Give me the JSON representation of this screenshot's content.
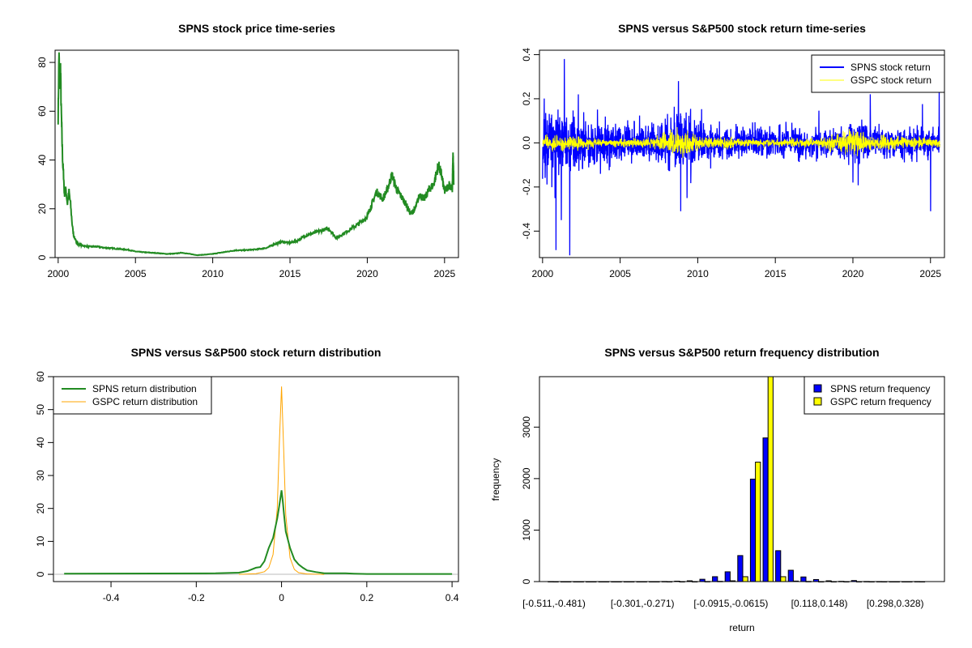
{
  "chart_data": [
    {
      "type": "line",
      "title": "SPNS stock price time-series",
      "xlabel": "",
      "ylabel": "",
      "xlim": [
        1999.8,
        2025.9
      ],
      "ylim": [
        0,
        85
      ],
      "xticks": [
        2000,
        2005,
        2010,
        2015,
        2020,
        2025
      ],
      "yticks": [
        0,
        20,
        40,
        60,
        80
      ],
      "color": "#228B22",
      "series": [
        {
          "name": "SPNS price",
          "x": [
            2000.0,
            2000.05,
            2000.1,
            2000.15,
            2000.2,
            2000.25,
            2000.3,
            2000.35,
            2000.4,
            2000.5,
            2000.6,
            2000.7,
            2000.8,
            2000.9,
            2001.0,
            2001.2,
            2001.5,
            2002,
            2002.5,
            2003,
            2003.5,
            2004,
            2004.5,
            2005,
            2005.5,
            2006,
            2006.5,
            2007,
            2007.5,
            2008,
            2008.5,
            2009,
            2009.5,
            2010,
            2010.5,
            2011,
            2011.5,
            2012,
            2012.5,
            2013,
            2013.5,
            2014,
            2014.5,
            2015,
            2015.5,
            2016,
            2016.5,
            2017,
            2017.5,
            2018,
            2018.5,
            2019,
            2019.5,
            2020,
            2020.3,
            2020.6,
            2021,
            2021.3,
            2021.6,
            2021.9,
            2022.2,
            2022.5,
            2022.8,
            2023.1,
            2023.4,
            2023.7,
            2024,
            2024.3,
            2024.6,
            2024.8,
            2025,
            2025.3,
            2025.5,
            2025.55,
            2025.6
          ],
          "y": [
            58,
            84,
            70,
            78,
            60,
            48,
            38,
            34,
            26,
            28,
            22,
            27,
            22,
            14,
            9,
            6,
            5,
            4.5,
            4.5,
            4,
            3.8,
            3.5,
            3.2,
            2.5,
            2.2,
            2,
            1.8,
            1.5,
            1.6,
            2,
            1.5,
            1,
            1.2,
            1.5,
            2,
            2.5,
            3,
            3,
            3.2,
            3.5,
            4,
            5.5,
            6.5,
            6,
            7,
            9,
            10,
            11,
            12,
            8,
            10,
            12,
            14,
            17,
            22,
            27,
            24,
            28,
            34,
            28,
            25,
            22,
            18,
            20,
            26,
            24,
            28,
            30,
            38,
            34,
            27,
            30,
            28,
            42,
            30
          ]
        }
      ]
    },
    {
      "type": "line",
      "title": "SPNS versus S&P500 stock return time-series",
      "xlim": [
        1999.8,
        2025.9
      ],
      "ylim": [
        -0.52,
        0.42
      ],
      "xticks": [
        2000,
        2005,
        2010,
        2015,
        2020,
        2025
      ],
      "yticks": [
        -0.4,
        -0.2,
        0.0,
        0.2,
        0.4
      ],
      "legend": {
        "position": "top-right",
        "entries": [
          "SPNS stock return",
          "GSPC stock return"
        ]
      },
      "series": [
        {
          "name": "SPNS stock return",
          "color": "#0000FF",
          "volatility_by_year": [
            [
              2000,
              0.08
            ],
            [
              2001,
              0.08
            ],
            [
              2002,
              0.06
            ],
            [
              2003,
              0.05
            ],
            [
              2005,
              0.045
            ],
            [
              2007,
              0.04
            ],
            [
              2008.7,
              0.07
            ],
            [
              2009.5,
              0.06
            ],
            [
              2011,
              0.04
            ],
            [
              2013,
              0.035
            ],
            [
              2016,
              0.035
            ],
            [
              2019,
              0.03
            ],
            [
              2020.2,
              0.045
            ],
            [
              2022,
              0.035
            ],
            [
              2025.6,
              0.03
            ]
          ],
          "spikes": [
            [
              2001.4,
              0.38
            ],
            [
              2001.75,
              -0.51
            ],
            [
              2001.2,
              -0.35
            ],
            [
              2000.8,
              -0.25
            ],
            [
              2002.3,
              0.22
            ],
            [
              2008.75,
              0.28
            ],
            [
              2008.9,
              -0.31
            ],
            [
              2009.3,
              -0.25
            ],
            [
              2020.0,
              -0.18
            ],
            [
              2025.0,
              -0.31
            ],
            [
              2025.55,
              0.24
            ]
          ]
        },
        {
          "name": "GSPC stock return",
          "color": "#FFFF00",
          "volatility_by_year": [
            [
              2000,
              0.015
            ],
            [
              2002,
              0.016
            ],
            [
              2004,
              0.008
            ],
            [
              2007,
              0.01
            ],
            [
              2008.8,
              0.035
            ],
            [
              2009.5,
              0.02
            ],
            [
              2011,
              0.013
            ],
            [
              2014,
              0.008
            ],
            [
              2018,
              0.01
            ],
            [
              2020.2,
              0.03
            ],
            [
              2021,
              0.012
            ],
            [
              2022,
              0.016
            ],
            [
              2025.6,
              0.01
            ]
          ]
        }
      ]
    },
    {
      "type": "line",
      "title": "SPNS versus S&P500 stock return distribution",
      "xlim": [
        -0.535,
        0.415
      ],
      "ylim": [
        -2.2,
        60
      ],
      "xticks": [
        -0.4,
        -0.2,
        0.0,
        0.2,
        0.4
      ],
      "yticks": [
        0,
        10,
        20,
        30,
        40,
        50,
        60
      ],
      "legend": {
        "position": "top-left",
        "entries": [
          "SPNS return distribution",
          "GSPC return distribution"
        ]
      },
      "series": [
        {
          "name": "SPNS return distribution",
          "color": "#228B22",
          "x": [
            -0.51,
            -0.155,
            -0.1,
            -0.08,
            -0.06,
            -0.05,
            -0.04,
            -0.03,
            -0.02,
            -0.01,
            -0.005,
            0,
            0.003,
            0.006,
            0.01,
            0.02,
            0.03,
            0.04,
            0.05,
            0.06,
            0.08,
            0.1,
            0.15,
            0.17,
            0.2,
            0.4
          ],
          "y": [
            0.2,
            0.3,
            0.5,
            1,
            2,
            2.2,
            4,
            8,
            11,
            17,
            21,
            25.5,
            22,
            18,
            13,
            8,
            4.5,
            3,
            2,
            1.2,
            0.7,
            0.3,
            0.3,
            0.2,
            0.1,
            0.1
          ]
        },
        {
          "name": "GSPC return distribution",
          "color": "#FFA500",
          "x": [
            -0.1,
            -0.06,
            -0.04,
            -0.03,
            -0.02,
            -0.01,
            -0.005,
            0,
            0.005,
            0.01,
            0.02,
            0.03,
            0.04,
            0.06,
            0.1
          ],
          "y": [
            0,
            0.2,
            0.8,
            2,
            6,
            20,
            40,
            57,
            38,
            18,
            5,
            1.5,
            0.5,
            0.1,
            0
          ]
        }
      ]
    },
    {
      "type": "bar",
      "title": "SPNS versus S&P500 return frequency distribution",
      "xlabel": "return",
      "ylabel": "frequency",
      "ylim": [
        0,
        3980
      ],
      "yticks": [
        0,
        1000,
        2000,
        3000
      ],
      "bin_start": -0.5115,
      "bin_width": 0.03,
      "tick_labels": [
        {
          "bin": 0,
          "label": "[-0.511,-0.481)"
        },
        {
          "bin": 7,
          "label": "[-0.301,-0.271)"
        },
        {
          "bin": 14,
          "label": "[-0.0915,-0.0615)"
        },
        {
          "bin": 21,
          "label": "[0.118,0.148)"
        },
        {
          "bin": 27,
          "label": "[0.298,0.328)"
        }
      ],
      "legend": {
        "position": "top-right",
        "entries": [
          "SPNS return frequency",
          "GSPC return frequency"
        ]
      },
      "series": [
        {
          "name": "SPNS return frequency",
          "color": "#0000FF",
          "values": [
            1,
            0,
            0,
            0,
            0,
            0,
            0,
            0,
            0,
            2,
            8,
            15,
            45,
            95,
            190,
            505,
            1990,
            2790,
            600,
            220,
            90,
            40,
            15,
            5,
            20,
            2,
            1,
            0,
            0,
            1
          ]
        },
        {
          "name": "GSPC return frequency",
          "color": "#FFFF00",
          "values": [
            0,
            0,
            0,
            0,
            0,
            0,
            0,
            0,
            0,
            0,
            0,
            0,
            2,
            5,
            15,
            95,
            2320,
            3980,
            95,
            10,
            3,
            0,
            0,
            0,
            0,
            0,
            0,
            0,
            0,
            0
          ]
        }
      ]
    }
  ]
}
